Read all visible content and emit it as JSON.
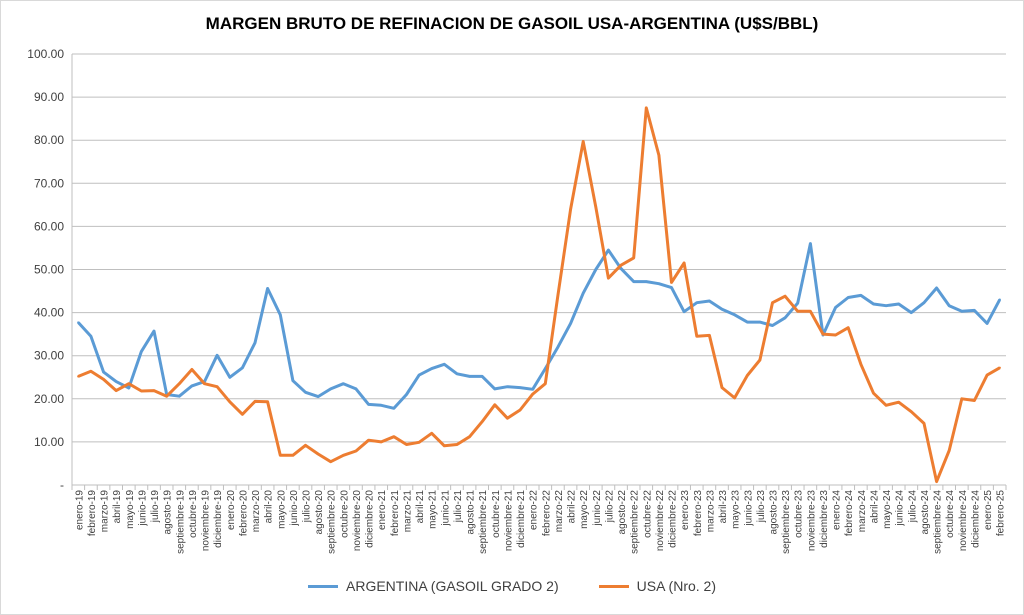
{
  "chart_data": {
    "type": "line",
    "title": "MARGEN BRUTO DE REFINACION DE GASOIL USA-ARGENTINA (U$S/BBL)",
    "xlabel": "",
    "ylabel": "",
    "ylim": [
      0,
      100
    ],
    "yticks": [
      "-",
      "10.00",
      "20.00",
      "30.00",
      "40.00",
      "50.00",
      "60.00",
      "70.00",
      "80.00",
      "90.00",
      "100.00"
    ],
    "grid": true,
    "legend_position": "bottom",
    "categories": [
      "enero-19",
      "febrero-19",
      "marzo-19",
      "abril-19",
      "mayo-19",
      "junio-19",
      "julio-19",
      "agosto-19",
      "septiembre-19",
      "octubre-19",
      "noviembre-19",
      "diciembre-19",
      "enero-20",
      "febrero-20",
      "marzo-20",
      "abril-20",
      "mayo-20",
      "junio-20",
      "julio-20",
      "agosto-20",
      "septiembre-20",
      "octubre-20",
      "noviembre-20",
      "diciembre-20",
      "enero-21",
      "febrero-21",
      "marzo-21",
      "abril-21",
      "mayo-21",
      "junio-21",
      "julio-21",
      "agosto-21",
      "septiembre-21",
      "octubre-21",
      "noviembre-21",
      "diciembre-21",
      "enero-22",
      "febrero-22",
      "marzo-22",
      "abril-22",
      "mayo-22",
      "junio-22",
      "julio-22",
      "agosto-22",
      "septiembre-22",
      "octubre-22",
      "noviembre-22",
      "diciembre-22",
      "enero-23",
      "febrero-23",
      "marzo-23",
      "abril-23",
      "mayo-23",
      "junio-23",
      "julio-23",
      "agosto-23",
      "septiembre-23",
      "octubre-23",
      "noviembre-23",
      "diciembre-23",
      "enero-24",
      "febrero-24",
      "marzo-24",
      "abril-24",
      "mayo-24",
      "junio-24",
      "julio-24",
      "agosto-24",
      "septiembre-24",
      "octubre-24",
      "noviembre-24",
      "diciembre-24",
      "enero-25",
      "febrero-25"
    ],
    "series": [
      {
        "name": "ARGENTINA (GASOIL GRADO 2)",
        "color": "#5B9BD5",
        "values": [
          37.7,
          34.5,
          26.2,
          24,
          22.5,
          31,
          35.7,
          21,
          20.6,
          23,
          24,
          30.1,
          25,
          27.2,
          33,
          45.6,
          39.5,
          24.2,
          21.5,
          20.5,
          22.3,
          23.5,
          22.3,
          18.7,
          18.5,
          17.8,
          21,
          25.5,
          27,
          28,
          25.8,
          25.2,
          25.2,
          22.3,
          22.8,
          22.6,
          22.2,
          27,
          32,
          37.5,
          44.5,
          50,
          54.5,
          50.2,
          47.2,
          47.2,
          46.7,
          45.8,
          40.2,
          42.3,
          42.7,
          40.8,
          39.5,
          37.8,
          37.8,
          37,
          38.8,
          42.2,
          56,
          34.8,
          41.2,
          43.5,
          44,
          42,
          41.6,
          42,
          40,
          42.3,
          45.7,
          41.6,
          40.3,
          40.5,
          37.5,
          43
        ]
      },
      {
        "name": "USA (Nro. 2)",
        "color": "#ED7D31",
        "values": [
          25.2,
          26.4,
          24.5,
          21.9,
          23.5,
          21.8,
          21.9,
          20.6,
          23.5,
          26.8,
          23.5,
          22.8,
          19.3,
          16.4,
          19.4,
          19.3,
          6.9,
          6.9,
          9.2,
          7.2,
          5.4,
          6.9,
          7.9,
          10.4,
          10,
          11.2,
          9.4,
          9.9,
          12,
          9.1,
          9.4,
          11.2,
          14.7,
          18.6,
          15.5,
          17.4,
          21.1,
          23.5,
          44,
          64,
          79.7,
          64.5,
          48,
          51,
          52.7,
          87.5,
          76.5,
          47,
          51.5,
          34.5,
          34.7,
          22.6,
          20.2,
          25.4,
          29,
          42.3,
          43.8,
          40.3,
          40.3,
          35,
          34.8,
          36.5,
          28,
          21.3,
          18.5,
          19.2,
          17,
          14.3,
          0.8,
          8,
          20,
          19.6,
          25.5,
          27.2
        ]
      }
    ]
  }
}
